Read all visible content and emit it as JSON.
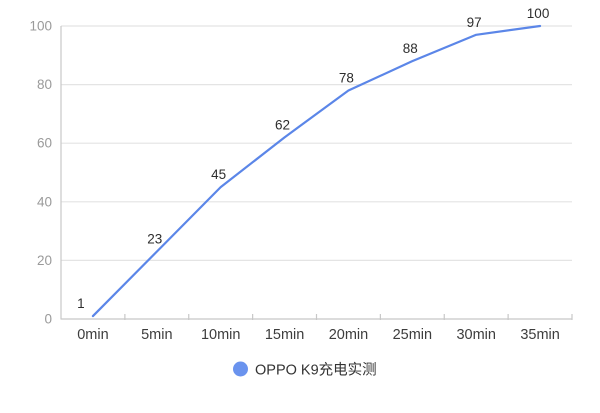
{
  "chart_data": {
    "type": "line",
    "title": "",
    "categories": [
      "0min",
      "5min",
      "10min",
      "15min",
      "20min",
      "25min",
      "30min",
      "35min"
    ],
    "series": [
      {
        "name": "OPPO K9充电实测",
        "values": [
          1,
          23,
          45,
          62,
          78,
          88,
          97,
          100
        ]
      }
    ],
    "xlabel": "",
    "ylabel": "",
    "ylim": [
      0,
      100
    ],
    "yticks": [
      0,
      20,
      40,
      60,
      80,
      100
    ],
    "grid": true,
    "point_labels_shown": true,
    "legend_position": "bottom",
    "colors": {
      "series": "#5b86e8",
      "legend_marker": "#6a93ee",
      "gridline": "#e4e4e4",
      "axis": "#c8c8c8",
      "y_tick_label": "#9a9a9a",
      "x_tick_label": "#3d3d3d",
      "data_label": "#2e2e2e",
      "legend_text": "#333333",
      "background": "#ffffff"
    }
  }
}
